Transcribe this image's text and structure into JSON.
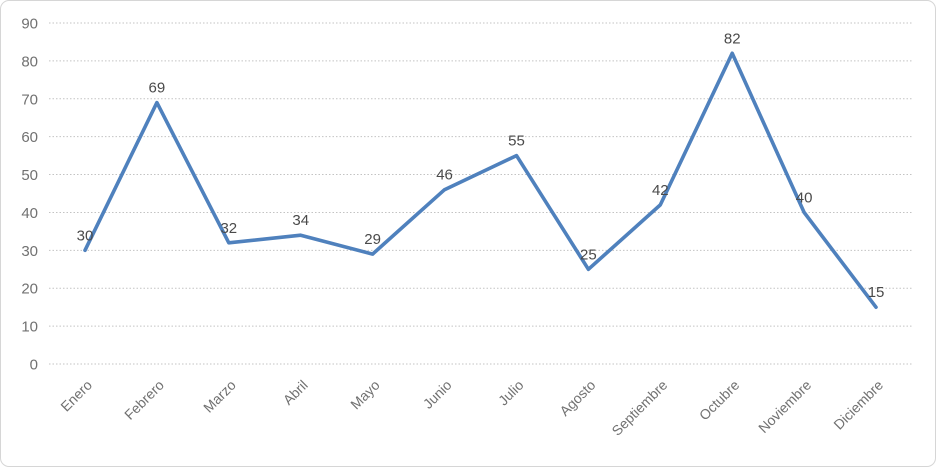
{
  "chart_data": {
    "type": "line",
    "categories": [
      "Enero",
      "Febrero",
      "Marzo",
      "Abril",
      "Mayo",
      "Junio",
      "Julio",
      "Agosto",
      "Septiembre",
      "Octubre",
      "Noviembre",
      "Diciembre"
    ],
    "values": [
      30,
      69,
      32,
      34,
      29,
      46,
      55,
      25,
      42,
      82,
      40,
      15
    ],
    "title": "",
    "xlabel": "",
    "ylabel": "",
    "ylim": [
      0,
      90
    ],
    "ytick_step": 10,
    "ytick_labels": [
      "0",
      "10",
      "20",
      "30",
      "40",
      "50",
      "60",
      "70",
      "80",
      "90"
    ],
    "data_labels": [
      "30",
      "69",
      "32",
      "34",
      "29",
      "46",
      "55",
      "25",
      "42",
      "82",
      "40",
      "15"
    ],
    "grid": true,
    "legend": false,
    "legend_position": "none",
    "x_label_rotation_deg": -45,
    "colors": {
      "line": "#4F81BD",
      "gridline": "#c3c3c3",
      "axis_label": "#717171",
      "data_label": "#4a4a4a",
      "background": "#ffffff",
      "frame_border": "#d6d6d6"
    }
  }
}
